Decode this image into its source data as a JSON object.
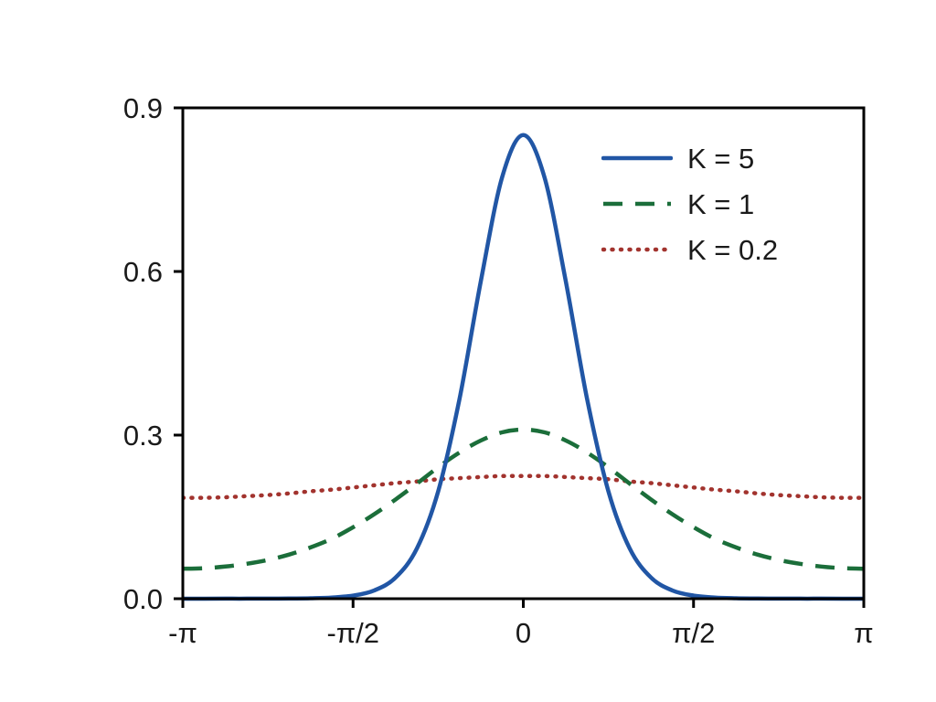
{
  "chart_data": {
    "type": "line",
    "title": "",
    "xlabel": "",
    "ylabel": "",
    "x_unit": "radians (multiples of pi)",
    "xlim_pi": [
      -1,
      1
    ],
    "ylim": [
      0,
      0.9
    ],
    "grid": false,
    "frame": "full-box",
    "xticks": [
      {
        "value_pi": -1,
        "label": "-π"
      },
      {
        "value_pi": -0.5,
        "label": "-π/2"
      },
      {
        "value_pi": 0,
        "label": "0"
      },
      {
        "value_pi": 0.5,
        "label": "π/2"
      },
      {
        "value_pi": 1,
        "label": "π"
      }
    ],
    "yticks": [
      {
        "value": 0.0,
        "label": "0.0"
      },
      {
        "value": 0.3,
        "label": "0.3"
      },
      {
        "value": 0.6,
        "label": "0.6"
      },
      {
        "value": 0.9,
        "label": "0.9"
      }
    ],
    "x_pi": [
      -1,
      -0.9375,
      -0.875,
      -0.8125,
      -0.75,
      -0.6875,
      -0.625,
      -0.5625,
      -0.5,
      -0.4375,
      -0.375,
      -0.3125,
      -0.25,
      -0.1875,
      -0.125,
      -0.0625,
      0,
      0.0625,
      0.125,
      0.1875,
      0.25,
      0.3125,
      0.375,
      0.4375,
      0.5,
      0.5625,
      0.625,
      0.6875,
      0.75,
      0.8125,
      0.875,
      0.9375,
      1
    ],
    "series": [
      {
        "name": "K = 5",
        "color": "#2156a5",
        "dash": "solid",
        "values": [
          0.0,
          0.0,
          0.0001,
          0.0001,
          0.0002,
          0.0004,
          0.0008,
          0.0022,
          0.0057,
          0.0152,
          0.0388,
          0.0921,
          0.197,
          0.366,
          0.581,
          0.772,
          0.85,
          0.772,
          0.581,
          0.366,
          0.197,
          0.0921,
          0.0388,
          0.0152,
          0.0057,
          0.0022,
          0.0008,
          0.0004,
          0.0002,
          0.0001,
          0.0001,
          0.0,
          0.0
        ]
      },
      {
        "name": "K = 1",
        "color": "#1b6e3a",
        "dash": "dashed",
        "values": [
          0.055,
          0.056,
          0.059,
          0.064,
          0.071,
          0.081,
          0.094,
          0.11,
          0.131,
          0.155,
          0.182,
          0.211,
          0.241,
          0.268,
          0.29,
          0.305,
          0.31,
          0.305,
          0.29,
          0.268,
          0.241,
          0.211,
          0.182,
          0.155,
          0.131,
          0.11,
          0.094,
          0.081,
          0.071,
          0.064,
          0.059,
          0.056,
          0.055
        ]
      },
      {
        "name": "K = 0.2",
        "color": "#a2332e",
        "dash": "dotted",
        "values": [
          0.185,
          0.185,
          0.186,
          0.188,
          0.19,
          0.193,
          0.197,
          0.2,
          0.204,
          0.208,
          0.212,
          0.215,
          0.219,
          0.221,
          0.223,
          0.225,
          0.225,
          0.225,
          0.223,
          0.221,
          0.219,
          0.215,
          0.212,
          0.208,
          0.204,
          0.2,
          0.197,
          0.193,
          0.19,
          0.188,
          0.186,
          0.185,
          0.185
        ]
      }
    ],
    "legend": {
      "position": "top-right",
      "border": "none"
    },
    "axis_color": "#000000",
    "tick_label_color": "#1a1a1a"
  }
}
